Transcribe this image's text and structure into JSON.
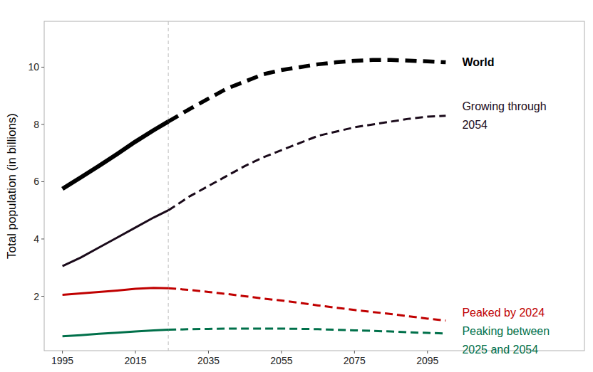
{
  "chart_data": {
    "type": "line",
    "y_label": "Total population (in billions)",
    "x": [
      1995,
      2000,
      2005,
      2010,
      2015,
      2020,
      2024,
      2030,
      2035,
      2040,
      2045,
      2050,
      2055,
      2060,
      2065,
      2070,
      2075,
      2080,
      2085,
      2090,
      2095,
      2100
    ],
    "projection_start": 2024,
    "series": [
      {
        "name": "World",
        "color": "#000000",
        "values": [
          5.75,
          6.15,
          6.55,
          6.97,
          7.4,
          7.8,
          8.1,
          8.55,
          8.9,
          9.25,
          9.5,
          9.75,
          9.9,
          10.0,
          10.1,
          10.17,
          10.22,
          10.25,
          10.25,
          10.23,
          10.2,
          10.17
        ]
      },
      {
        "name": "Growing through 2054",
        "color": "#1a0a1a",
        "values": [
          3.05,
          3.35,
          3.7,
          4.05,
          4.4,
          4.75,
          5.0,
          5.5,
          5.85,
          6.2,
          6.55,
          6.85,
          7.1,
          7.35,
          7.6,
          7.75,
          7.9,
          8.0,
          8.1,
          8.2,
          8.27,
          8.3
        ]
      },
      {
        "name": "Peaked by 2024",
        "color": "#c00000",
        "values": [
          2.05,
          2.1,
          2.15,
          2.2,
          2.26,
          2.29,
          2.28,
          2.22,
          2.15,
          2.08,
          2.0,
          1.92,
          1.85,
          1.77,
          1.68,
          1.6,
          1.52,
          1.45,
          1.38,
          1.3,
          1.22,
          1.15
        ]
      },
      {
        "name": "Peaking between 2025 and 2054",
        "color": "#00704a",
        "values": [
          0.6,
          0.64,
          0.69,
          0.73,
          0.77,
          0.81,
          0.83,
          0.85,
          0.86,
          0.87,
          0.87,
          0.87,
          0.87,
          0.86,
          0.85,
          0.83,
          0.81,
          0.79,
          0.77,
          0.74,
          0.72,
          0.7
        ]
      }
    ],
    "xlim": [
      1990,
      2138
    ],
    "xticks": [
      1995,
      2015,
      2035,
      2055,
      2075,
      2095
    ],
    "ylim": [
      0.1,
      11.6
    ],
    "yticks": [
      2,
      4,
      6,
      8,
      10
    ],
    "grid": false
  }
}
